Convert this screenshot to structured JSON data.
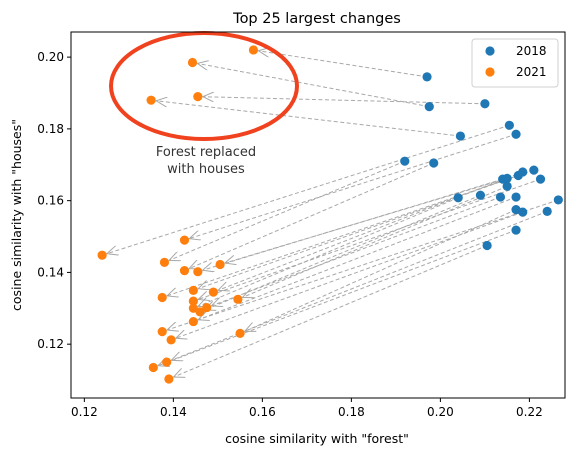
{
  "chart_data": {
    "type": "scatter",
    "title": "Top 25 largest changes",
    "xlabel": "cosine similarity with \"forest\"",
    "ylabel": "cosine similarity with \"houses\"",
    "xlim": [
      0.117,
      0.228
    ],
    "ylim": [
      0.105,
      0.207
    ],
    "xticks": [
      0.12,
      0.14,
      0.16,
      0.18,
      0.2,
      0.22
    ],
    "yticks": [
      0.12,
      0.14,
      0.16,
      0.18,
      0.2
    ],
    "xtick_labels": [
      "0.12",
      "0.14",
      "0.16",
      "0.18",
      "0.20",
      "0.22"
    ],
    "ytick_labels": [
      "0.12",
      "0.14",
      "0.16",
      "0.18",
      "0.20"
    ],
    "grid": false,
    "legend_position": "top-right",
    "annotation": {
      "text_lines": [
        "Forest replaced",
        "with houses"
      ],
      "ellipse_color": "#f0421e"
    },
    "series": [
      {
        "name": "2018",
        "color": "#1f77b4",
        "points": [
          [
            0.197,
            0.1945
          ],
          [
            0.1975,
            0.1862
          ],
          [
            0.21,
            0.187
          ],
          [
            0.2045,
            0.178
          ],
          [
            0.2155,
            0.181
          ],
          [
            0.217,
            0.1785
          ],
          [
            0.192,
            0.171
          ],
          [
            0.1985,
            0.1705
          ],
          [
            0.214,
            0.166
          ],
          [
            0.215,
            0.1662
          ],
          [
            0.2175,
            0.167
          ],
          [
            0.2185,
            0.168
          ],
          [
            0.221,
            0.1685
          ],
          [
            0.2225,
            0.166
          ],
          [
            0.215,
            0.164
          ],
          [
            0.204,
            0.1608
          ],
          [
            0.209,
            0.1615
          ],
          [
            0.2135,
            0.161
          ],
          [
            0.217,
            0.161
          ],
          [
            0.2265,
            0.1602
          ],
          [
            0.217,
            0.1575
          ],
          [
            0.2185,
            0.1568
          ],
          [
            0.224,
            0.157
          ],
          [
            0.217,
            0.1518
          ],
          [
            0.2105,
            0.1475
          ]
        ]
      },
      {
        "name": "2021",
        "color": "#ff7f0e",
        "points": [
          [
            0.158,
            0.202
          ],
          [
            0.1443,
            0.1985
          ],
          [
            0.1455,
            0.189
          ],
          [
            0.135,
            0.188
          ],
          [
            0.124,
            0.1448
          ],
          [
            0.1425,
            0.149
          ],
          [
            0.138,
            0.1428
          ],
          [
            0.1425,
            0.1405
          ],
          [
            0.1455,
            0.1402
          ],
          [
            0.1505,
            0.1422
          ],
          [
            0.1445,
            0.135
          ],
          [
            0.149,
            0.1345
          ],
          [
            0.1375,
            0.133
          ],
          [
            0.1445,
            0.132
          ],
          [
            0.1545,
            0.1325
          ],
          [
            0.1445,
            0.13
          ],
          [
            0.146,
            0.129
          ],
          [
            0.1475,
            0.1302
          ],
          [
            0.1445,
            0.1263
          ],
          [
            0.1375,
            0.1235
          ],
          [
            0.155,
            0.123
          ],
          [
            0.1395,
            0.1212
          ],
          [
            0.1385,
            0.115
          ],
          [
            0.1355,
            0.1135
          ],
          [
            0.139,
            0.1103
          ]
        ]
      }
    ]
  }
}
